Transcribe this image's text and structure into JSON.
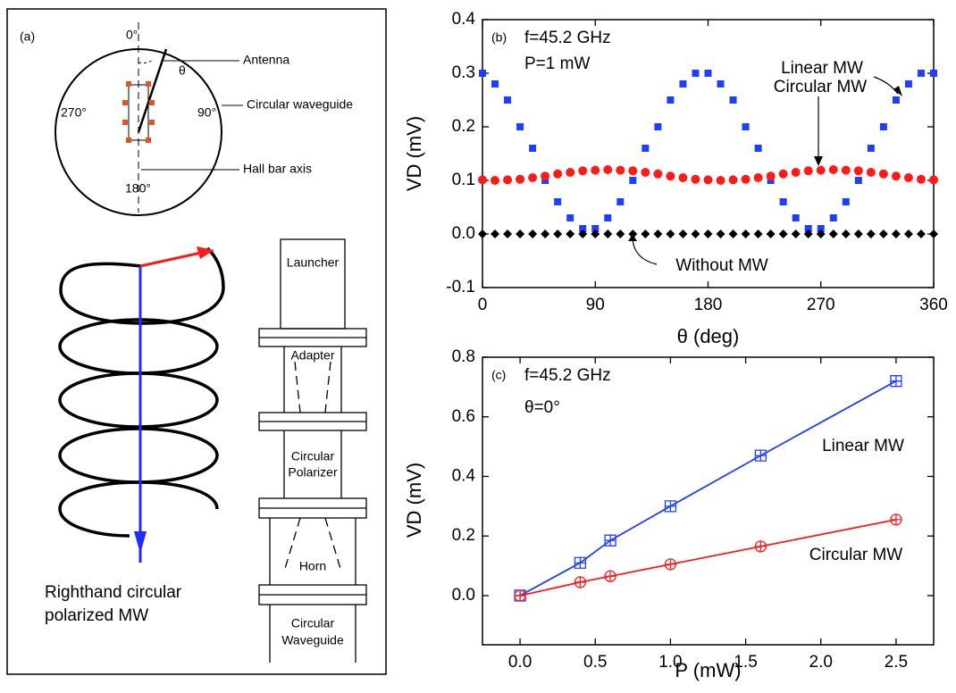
{
  "diagram": {
    "panel_label": "(a)",
    "angle_top": "0°",
    "theta": "θ",
    "antenna": "Antenna",
    "angle_left": "270°",
    "angle_right": "90°",
    "circular_waveguide": "Circular waveguide",
    "hall_bar_axis": "Hall bar axis",
    "angle_bottom": "180°",
    "launcher": "Launcher",
    "adapter": "Adapter",
    "polarizer": [
      "Circular",
      "Polarizer"
    ],
    "horn": "Horn",
    "waveguide": [
      "Circular",
      "Waveguide"
    ],
    "caption": [
      "Righthand circular",
      "polarized MW"
    ]
  },
  "chart_data": [
    {
      "type": "scatter",
      "panel_label": "(b)",
      "annotations": [
        "f=45.2 GHz",
        "P=1 mW"
      ],
      "xlabel": "θ (deg)",
      "ylabel": "VD (mV)",
      "xlim": [
        0,
        360
      ],
      "xticks": [
        0,
        90,
        180,
        270,
        360
      ],
      "ylim": [
        -0.1,
        0.4
      ],
      "yticks": [
        -0.1,
        {
          "value": 0,
          "label": "0.0"
        },
        0.1,
        0.2,
        0.3,
        0.4
      ],
      "x": [
        0,
        10,
        20,
        30,
        40,
        50,
        60,
        70,
        80,
        90,
        100,
        110,
        120,
        130,
        140,
        150,
        160,
        170,
        180,
        190,
        200,
        210,
        220,
        230,
        240,
        250,
        260,
        270,
        280,
        290,
        300,
        310,
        320,
        330,
        340,
        350,
        360
      ],
      "series": [
        {
          "name": "Linear MW",
          "color": "#1f3fff",
          "marker": "square",
          "values": [
            0.3,
            0.28,
            0.25,
            0.2,
            0.16,
            0.1,
            0.06,
            0.03,
            0.01,
            0.01,
            0.03,
            0.06,
            0.1,
            0.16,
            0.2,
            0.25,
            0.28,
            0.3,
            0.3,
            0.28,
            0.25,
            0.2,
            0.16,
            0.1,
            0.06,
            0.03,
            0.01,
            0.01,
            0.03,
            0.06,
            0.1,
            0.16,
            0.2,
            0.25,
            0.28,
            0.3,
            0.3
          ]
        },
        {
          "name": "Circular MW",
          "color": "#ff1a1a",
          "marker": "circle",
          "values": [
            0.101,
            0.1,
            0.101,
            0.102,
            0.105,
            0.108,
            0.112,
            0.115,
            0.118,
            0.119,
            0.12,
            0.119,
            0.118,
            0.115,
            0.112,
            0.108,
            0.105,
            0.102,
            0.101,
            0.1,
            0.101,
            0.102,
            0.105,
            0.108,
            0.112,
            0.115,
            0.118,
            0.119,
            0.12,
            0.119,
            0.118,
            0.115,
            0.112,
            0.108,
            0.105,
            0.102,
            0.101
          ]
        },
        {
          "name": "Without MW",
          "color": "#000000",
          "marker": "diamond",
          "values": [
            0,
            0,
            0,
            0,
            0,
            0,
            0,
            0,
            0,
            0,
            0,
            0,
            0,
            0,
            0,
            0,
            0,
            0,
            0,
            0,
            0,
            0,
            0,
            0,
            0,
            0,
            0,
            0,
            0,
            0,
            0,
            0,
            0,
            0,
            0,
            0,
            0
          ]
        }
      ]
    },
    {
      "type": "line",
      "panel_label": "(c)",
      "annotations": [
        "f=45.2 GHz",
        "θ=0°"
      ],
      "xlabel": "P (mW)",
      "ylabel": "VD (mV)",
      "xlim": [
        -0.25,
        2.75
      ],
      "xticks": [
        {
          "value": 0,
          "label": "0.0"
        },
        0.5,
        {
          "value": 1,
          "label": "1.0"
        },
        1.5,
        {
          "value": 2,
          "label": "2.0"
        },
        2.5
      ],
      "ylim": [
        -0.165,
        0.8
      ],
      "yticks": [
        {
          "value": 0,
          "label": "0.0"
        },
        0.2,
        0.4,
        0.6,
        0.8
      ],
      "x": [
        0,
        0.4,
        0.6,
        1,
        1.6,
        2.5
      ],
      "series": [
        {
          "name": "Linear MW",
          "color": "#1f3fff",
          "marker": "square-plus",
          "values": [
            0,
            0.11,
            0.185,
            0.3,
            0.47,
            0.72
          ]
        },
        {
          "name": "Circular MW",
          "color": "#ff1a1a",
          "marker": "circle-plus",
          "values": [
            0,
            0.045,
            0.065,
            0.105,
            0.165,
            0.255
          ]
        }
      ]
    }
  ]
}
